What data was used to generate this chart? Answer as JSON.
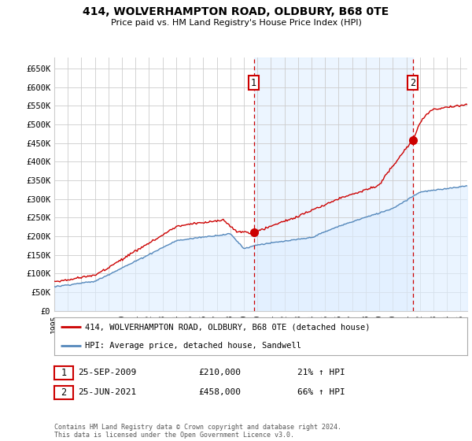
{
  "title": "414, WOLVERHAMPTON ROAD, OLDBURY, B68 0TE",
  "subtitle": "Price paid vs. HM Land Registry's House Price Index (HPI)",
  "ylim": [
    0,
    680000
  ],
  "yticks": [
    0,
    50000,
    100000,
    150000,
    200000,
    250000,
    300000,
    350000,
    400000,
    450000,
    500000,
    550000,
    600000,
    650000
  ],
  "ytick_labels": [
    "£0",
    "£50K",
    "£100K",
    "£150K",
    "£200K",
    "£250K",
    "£300K",
    "£350K",
    "£400K",
    "£450K",
    "£500K",
    "£550K",
    "£600K",
    "£650K"
  ],
  "legend_label_red": "414, WOLVERHAMPTON ROAD, OLDBURY, B68 0TE (detached house)",
  "legend_label_blue": "HPI: Average price, detached house, Sandwell",
  "red_color": "#cc0000",
  "blue_color": "#5588bb",
  "blue_fill_color": "#ddeeff",
  "shade_color": "#ddeeff",
  "point1_label": "1",
  "point1_date": "25-SEP-2009",
  "point1_price": "£210,000",
  "point1_hpi": "21% ↑ HPI",
  "point1_x": 2009.73,
  "point1_y": 210000,
  "point2_label": "2",
  "point2_date": "25-JUN-2021",
  "point2_price": "£458,000",
  "point2_hpi": "66% ↑ HPI",
  "point2_x": 2021.48,
  "point2_y": 458000,
  "footer": "Contains HM Land Registry data © Crown copyright and database right 2024.\nThis data is licensed under the Open Government Licence v3.0.",
  "bg_color": "#ffffff",
  "grid_color": "#cccccc",
  "xlim_start": 1995,
  "xlim_end": 2025.5
}
